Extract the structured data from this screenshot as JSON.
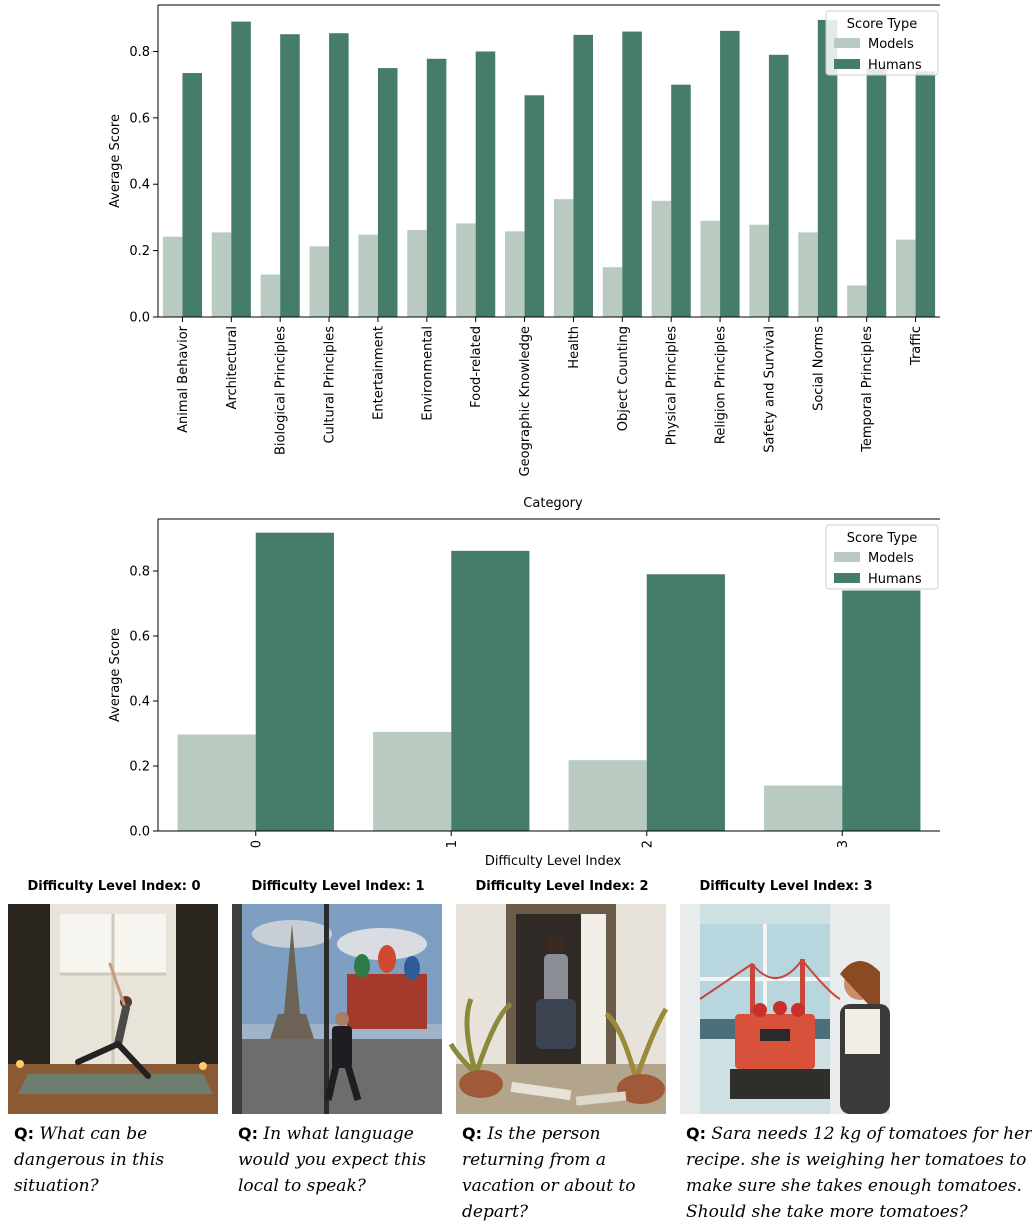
{
  "chart_data": [
    {
      "type": "bar",
      "xlabel": "Category",
      "ylabel": "Average Score",
      "ylim": [
        0,
        0.94
      ],
      "yticks": [
        "0.0",
        "0.2",
        "0.4",
        "0.6",
        "0.8"
      ],
      "categories": [
        "Animal Behavior",
        "Architectural",
        "Biological Principles",
        "Cultural Principles",
        "Entertainment",
        "Environmental",
        "Food-related",
        "Geographic Knowledge",
        "Health",
        "Object Counting",
        "Physical Principles",
        "Religion Principles",
        "Safety and Survival",
        "Social Norms",
        "Temporal Principles",
        "Traffic"
      ],
      "legend": {
        "title": "Score Type",
        "placement": "top-right"
      },
      "series": [
        {
          "name": "Models",
          "color": "#b9cbc1",
          "values": [
            0.242,
            0.255,
            0.128,
            0.213,
            0.248,
            0.262,
            0.282,
            0.258,
            0.355,
            0.15,
            0.35,
            0.29,
            0.278,
            0.255,
            0.095,
            0.233
          ]
        },
        {
          "name": "Humans",
          "color": "#467c6a",
          "values": [
            0.735,
            0.89,
            0.852,
            0.855,
            0.75,
            0.778,
            0.8,
            0.668,
            0.85,
            0.86,
            0.7,
            0.862,
            0.79,
            0.895,
            0.75,
            0.74
          ]
        }
      ]
    },
    {
      "type": "bar",
      "xlabel": "Difficulty Level Index",
      "ylabel": "Average Score",
      "ylim": [
        0,
        0.96
      ],
      "yticks": [
        "0.0",
        "0.2",
        "0.4",
        "0.6",
        "0.8"
      ],
      "categories": [
        "0",
        "1",
        "2",
        "3"
      ],
      "legend": {
        "title": "Score Type",
        "placement": "top-right"
      },
      "series": [
        {
          "name": "Models",
          "color": "#b9cbc1",
          "values": [
            0.297,
            0.305,
            0.218,
            0.14
          ]
        },
        {
          "name": "Humans",
          "color": "#467c6a",
          "values": [
            0.918,
            0.862,
            0.79,
            0.74
          ]
        }
      ]
    }
  ],
  "panels": [
    {
      "title": "Difficulty Level Index: 0",
      "image": "yoga-pose-image",
      "q_label": "Q:",
      "question_lines": [
        " What can be",
        "dangerous in this",
        "situation?"
      ]
    },
    {
      "title": "Difficulty Level Index: 1",
      "image": "eiffel-tower-street-image",
      "q_label": "Q:",
      "question_lines": [
        " In what language",
        "would you expect this",
        "local to speak?"
      ]
    },
    {
      "title": "Difficulty Level Index: 2",
      "image": "doorway-luggage-image",
      "q_label": "Q:",
      "question_lines": [
        " Is the person",
        "returning from a",
        "vacation or about to",
        "depart?"
      ]
    },
    {
      "title": "Difficulty Level Index: 3",
      "image": "kitchen-scale-image",
      "q_label": "Q:",
      "question_lines": [
        " Sara needs 12 kg of tomatoes for her",
        "recipe. she is weighing her tomatoes to",
        "make sure she takes enough tomatoes.",
        "Should she take more tomatoes?"
      ]
    }
  ]
}
